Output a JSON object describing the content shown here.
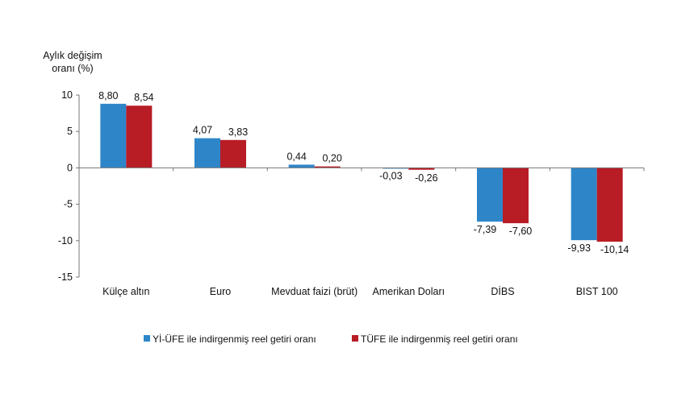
{
  "chart_data": {
    "type": "bar",
    "ylabel_lines": [
      "Aylık değişim",
      "oranı (%)"
    ],
    "categories": [
      "Külçe altın",
      "Euro",
      "Mevduat faizi (brüt)",
      "Amerikan Doları",
      "DİBS",
      "BIST 100"
    ],
    "series": [
      {
        "name": "Yİ-ÜFE ile indirgenmiş reel getiri oranı",
        "color": "#2e86c9",
        "values": [
          8.8,
          4.07,
          0.44,
          -0.03,
          -7.39,
          -9.93
        ],
        "labels": [
          "8,80",
          "4,07",
          "0,44",
          "-0,03",
          "-7,39",
          "-9,93"
        ]
      },
      {
        "name": "TÜFE ile indirgenmiş reel getiri oranı",
        "color": "#b81c25",
        "values": [
          8.54,
          3.83,
          0.2,
          -0.26,
          -7.6,
          -10.14
        ],
        "labels": [
          "8,54",
          "3,83",
          "0,20",
          "-0,26",
          "-7,60",
          "-10,14"
        ]
      }
    ],
    "yticks": [
      10,
      5,
      0,
      -5,
      -10,
      -15
    ],
    "ytick_labels": [
      "10",
      "5",
      "0",
      "-5",
      "-10",
      "-15"
    ],
    "ylim": [
      -15,
      10
    ],
    "grid": false,
    "legend_position": "bottom"
  }
}
